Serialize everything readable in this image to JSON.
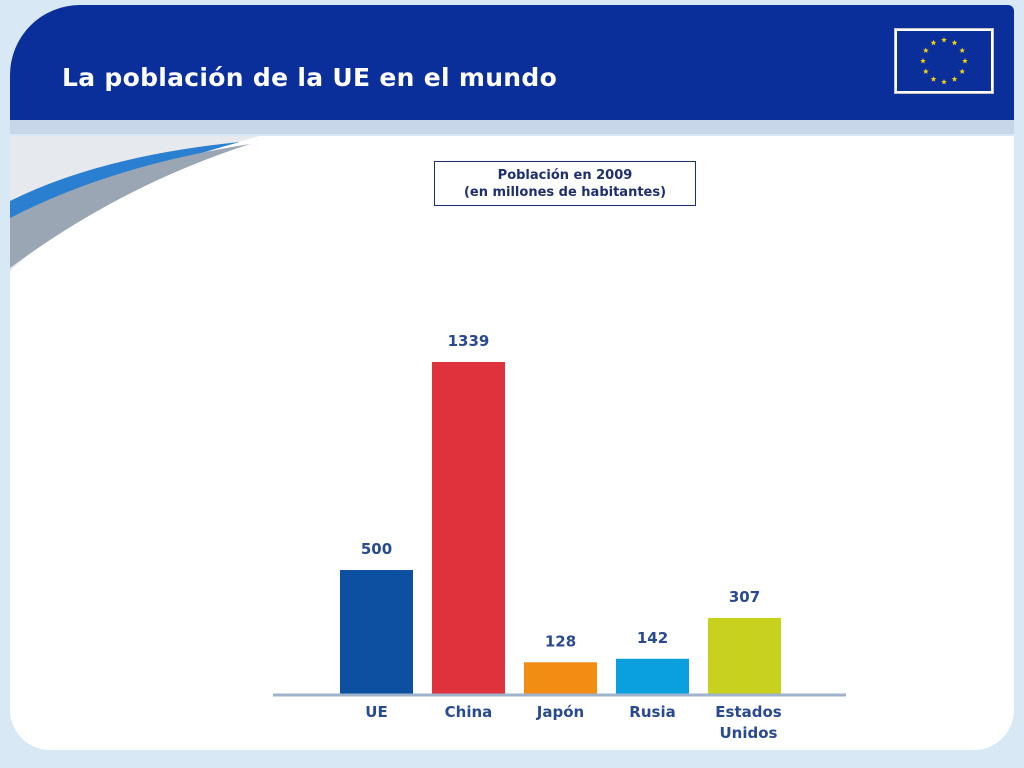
{
  "slide": {
    "title": "La población de la UE en el mundo",
    "logo_icon": "eu-flag-icon"
  },
  "colors": {
    "header": "#0a2f9a",
    "background": "#d9e8f5",
    "label_text": "#2a4a8f",
    "axis": "#9fb3cc"
  },
  "chart_data": {
    "type": "bar",
    "title": "Población en 2009",
    "subtitle": "(en millones de habitantes)",
    "categories": [
      "UE",
      "China",
      "Japón",
      "Rusia",
      "Estados Unidos"
    ],
    "category_lines": [
      [
        "UE"
      ],
      [
        "China"
      ],
      [
        "Japón"
      ],
      [
        "Rusia"
      ],
      [
        "Estados",
        "Unidos"
      ]
    ],
    "values": [
      500,
      1339,
      128,
      142,
      307
    ],
    "data_labels": [
      "500",
      "1339",
      "128",
      "142",
      "307"
    ],
    "bar_colors": [
      "#0d4fa0",
      "#e0323c",
      "#f28c12",
      "#0aa0e0",
      "#c8d21e"
    ],
    "ylim": [
      0,
      1339
    ],
    "grid": false,
    "xlabel": "",
    "ylabel": ""
  }
}
